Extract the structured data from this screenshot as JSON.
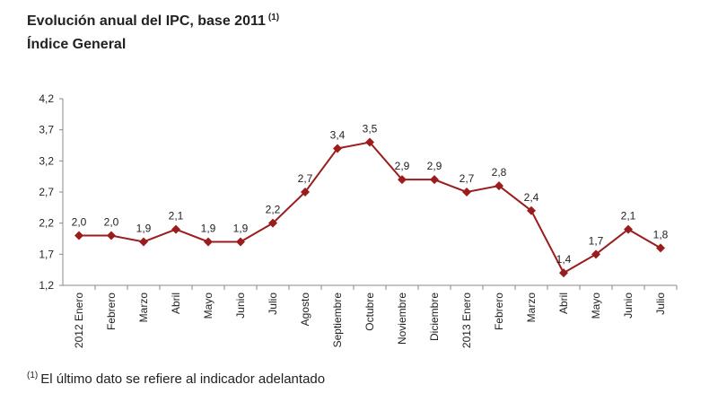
{
  "chart_data": {
    "type": "line",
    "title": "Evolución anual del IPC, base 2011",
    "title_note": "(1)",
    "subtitle": "Índice General",
    "footnote_mark": "(1)",
    "footnote": "El último dato se refiere al indicador adelantado",
    "categories": [
      "2012 Enero",
      "Febrero",
      "Marzo",
      "Abril",
      "Mayo",
      "Junio",
      "Julio",
      "Agosto",
      "Septiembre",
      "Octubre",
      "Noviembre",
      "Diciembre",
      "2013 Enero",
      "Febrero",
      "Marzo",
      "Abril",
      "Mayo",
      "Junio",
      "Julio"
    ],
    "values": [
      2.0,
      2.0,
      1.9,
      2.1,
      1.9,
      1.9,
      2.2,
      2.7,
      3.4,
      3.5,
      2.9,
      2.9,
      2.7,
      2.8,
      2.4,
      1.4,
      1.7,
      2.1,
      1.8
    ],
    "value_labels": [
      "2,0",
      "2,0",
      "1,9",
      "2,1",
      "1,9",
      "1,9",
      "2,2",
      "2,7",
      "3,4",
      "3,5",
      "2,9",
      "2,9",
      "2,7",
      "2,8",
      "2,4",
      "1,4",
      "1,7",
      "2,1",
      "1,8"
    ],
    "color": "#9b1c1c",
    "ylim": [
      1.2,
      4.2
    ],
    "yticks": [
      {
        "value": 1.2,
        "label": "1,2"
      },
      {
        "value": 1.7,
        "label": "1,7"
      },
      {
        "value": 2.2,
        "label": "2,2"
      },
      {
        "value": 2.7,
        "label": "2,7"
      },
      {
        "value": 3.2,
        "label": "3,2"
      },
      {
        "value": 3.7,
        "label": "3,7"
      },
      {
        "value": 4.2,
        "label": "4,2"
      }
    ],
    "grid": false
  }
}
